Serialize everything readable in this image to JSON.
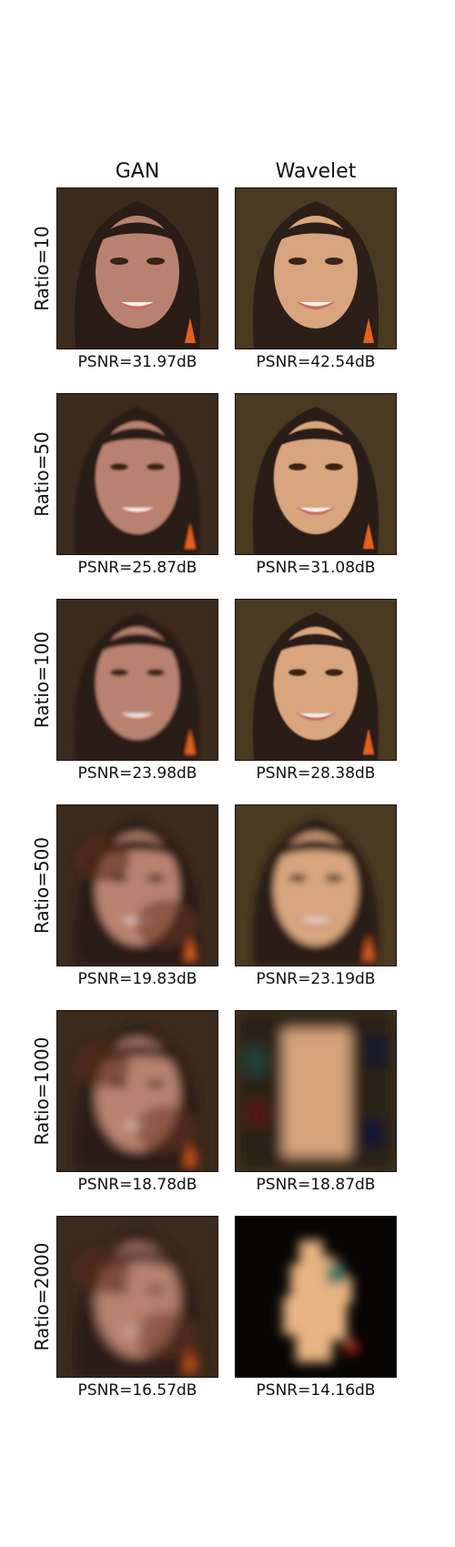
{
  "columns": [
    "GAN",
    "Wavelet"
  ],
  "rows": [
    {
      "label": "Ratio=10",
      "gan_psnr": "PSNR=31.97dB",
      "wavelet_psnr": "PSNR=42.54dB",
      "gan_blur": 0.3,
      "wavelet_blur": 0.0
    },
    {
      "label": "Ratio=50",
      "gan_psnr": "PSNR=25.87dB",
      "wavelet_psnr": "PSNR=31.08dB",
      "gan_blur": 1.2,
      "wavelet_blur": 0.4
    },
    {
      "label": "Ratio=100",
      "gan_psnr": "PSNR=23.98dB",
      "wavelet_psnr": "PSNR=28.38dB",
      "gan_blur": 1.8,
      "wavelet_blur": 0.8
    },
    {
      "label": "Ratio=500",
      "gan_psnr": "PSNR=19.83dB",
      "wavelet_psnr": "PSNR=23.19dB",
      "gan_blur": 4.5,
      "wavelet_blur": 4.0
    },
    {
      "label": "Ratio=1000",
      "gan_psnr": "PSNR=18.78dB",
      "wavelet_psnr": "PSNR=18.87dB",
      "gan_blur": 5.5,
      "wavelet_blur": 7.0
    },
    {
      "label": "Ratio=2000",
      "gan_psnr": "PSNR=16.57dB",
      "wavelet_psnr": "PSNR=14.16dB",
      "gan_blur": 6.5,
      "wavelet_blur": 6.0
    }
  ],
  "colors": {
    "background": "#ffffff",
    "text": "#111111",
    "skin": "#d8a57e",
    "hair": "#2b1f17",
    "backdrop": "#4a3a22",
    "lips": "#c96b5e",
    "earring": "#e2621c"
  }
}
